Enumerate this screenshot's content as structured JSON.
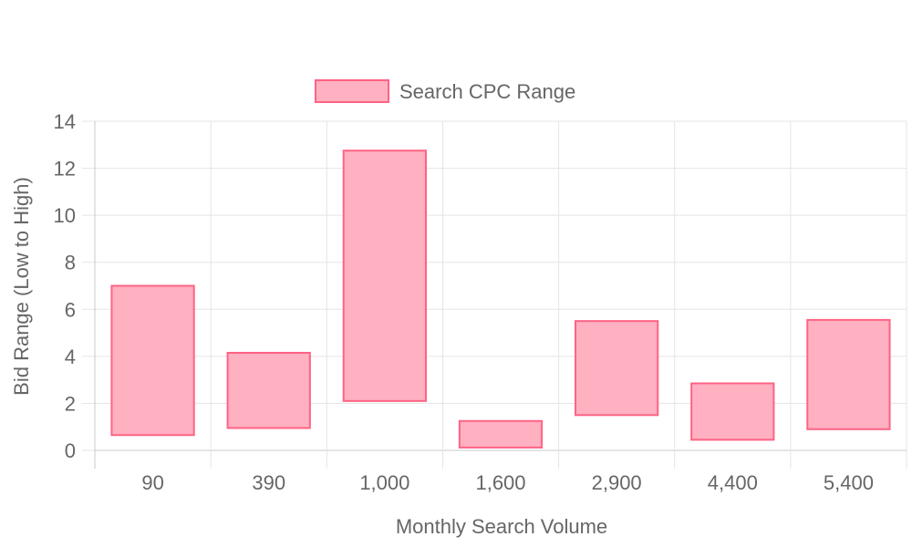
{
  "chart_data": {
    "type": "bar",
    "subtype": "floating-range",
    "categories": [
      "90",
      "390",
      "1,000",
      "1,600",
      "2,900",
      "4,400",
      "5,400"
    ],
    "series": [
      {
        "name": "Search CPC Range",
        "low": [
          0.65,
          0.95,
          2.1,
          0.12,
          1.5,
          0.45,
          0.9
        ],
        "high": [
          7.0,
          4.15,
          12.75,
          1.25,
          5.5,
          2.85,
          5.55
        ],
        "fill_color": "#ffb0c1",
        "border_color": "#ff6384"
      }
    ],
    "xlabel": "Monthly Search Volume",
    "ylabel": "Bid Range (Low to High)",
    "ylim": [
      0,
      14
    ],
    "yticks": [
      "0",
      "2",
      "4",
      "6",
      "8",
      "10",
      "12",
      "14"
    ],
    "grid": true,
    "legend_position": "top-center",
    "colors": {
      "grid": "#e5e5e5",
      "axis": "#c8c8c8",
      "text": "#666666"
    }
  }
}
